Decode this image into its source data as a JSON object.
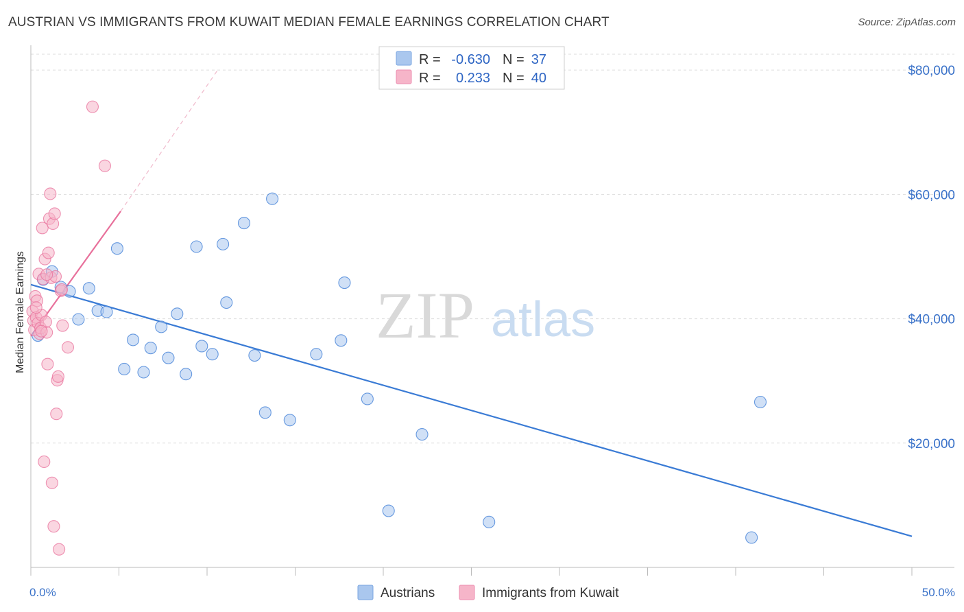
{
  "header": {
    "title": "AUSTRIAN VS IMMIGRANTS FROM KUWAIT MEDIAN FEMALE EARNINGS CORRELATION CHART",
    "source": "Source: ZipAtlas.com"
  },
  "watermark": {
    "zip": "ZIP",
    "atlas": "atlas"
  },
  "stats": [
    {
      "r_label": "R =",
      "r": "-0.630",
      "n_label": "N =",
      "n": "37",
      "color": "#aac7ee"
    },
    {
      "r_label": "R =",
      "r": "0.233",
      "n_label": "N =",
      "n": "40",
      "color": "#f6b5c9"
    }
  ],
  "legend": [
    {
      "label": "Austrians",
      "color": "#aac7ee"
    },
    {
      "label": "Immigrants from Kuwait",
      "color": "#f6b5c9"
    }
  ],
  "chart_data": {
    "type": "scatter",
    "ylabel": "Median Female Earnings",
    "xlim": [
      0,
      50
    ],
    "ylim": [
      0,
      83000
    ],
    "x_tick_labels": [
      "0.0%",
      "50.0%"
    ],
    "y_ticks": [
      {
        "value": 20000,
        "label": "$20,000"
      },
      {
        "value": 40000,
        "label": "$40,000"
      },
      {
        "value": 60000,
        "label": "$60,000"
      },
      {
        "value": 80000,
        "label": "$80,000"
      }
    ],
    "grid": true,
    "colors": {
      "austrians": "#3a7bd5",
      "kuwait": "#e8709b",
      "grid": "#dddddd",
      "tick_label": "#3a72c9"
    },
    "series": [
      {
        "name": "Austrians",
        "color": "#3a7bd5",
        "fill": "#aac7ee",
        "points": [
          [
            0.4,
            37300
          ],
          [
            0.7,
            46300
          ],
          [
            1.2,
            47600
          ],
          [
            1.7,
            45100
          ],
          [
            2.2,
            44400
          ],
          [
            2.7,
            39900
          ],
          [
            3.3,
            44900
          ],
          [
            3.8,
            41300
          ],
          [
            4.3,
            41100
          ],
          [
            4.9,
            51300
          ],
          [
            5.3,
            31900
          ],
          [
            5.8,
            36600
          ],
          [
            6.4,
            31400
          ],
          [
            6.8,
            35300
          ],
          [
            7.4,
            38700
          ],
          [
            7.8,
            33700
          ],
          [
            8.3,
            40800
          ],
          [
            8.8,
            31100
          ],
          [
            9.4,
            51600
          ],
          [
            9.7,
            35600
          ],
          [
            10.3,
            34300
          ],
          [
            10.9,
            52000
          ],
          [
            11.1,
            42600
          ],
          [
            12.1,
            55400
          ],
          [
            12.7,
            34100
          ],
          [
            13.3,
            24900
          ],
          [
            13.7,
            59300
          ],
          [
            14.7,
            23700
          ],
          [
            16.2,
            34300
          ],
          [
            17.6,
            36500
          ],
          [
            17.8,
            45800
          ],
          [
            19.1,
            27100
          ],
          [
            20.3,
            9100
          ],
          [
            22.2,
            21400
          ],
          [
            26.0,
            7300
          ],
          [
            40.9,
            4800
          ],
          [
            41.4,
            26600
          ]
        ]
      },
      {
        "name": "Immigrants from Kuwait",
        "color": "#e8709b",
        "fill": "#f6b5c9",
        "points": [
          [
            0.1,
            41200
          ],
          [
            0.15,
            39700
          ],
          [
            0.2,
            38200
          ],
          [
            0.25,
            43600
          ],
          [
            0.3,
            40200
          ],
          [
            0.35,
            42900
          ],
          [
            0.4,
            39300
          ],
          [
            0.45,
            47200
          ],
          [
            0.5,
            37600
          ],
          [
            0.55,
            38500
          ],
          [
            0.6,
            40600
          ],
          [
            0.65,
            54600
          ],
          [
            0.7,
            46400
          ],
          [
            0.75,
            17000
          ],
          [
            0.8,
            49600
          ],
          [
            0.85,
            39500
          ],
          [
            0.9,
            37800
          ],
          [
            0.95,
            32700
          ],
          [
            1.0,
            50600
          ],
          [
            1.05,
            56100
          ],
          [
            1.1,
            60100
          ],
          [
            1.15,
            46600
          ],
          [
            1.2,
            13600
          ],
          [
            1.25,
            55300
          ],
          [
            1.3,
            6600
          ],
          [
            1.35,
            56900
          ],
          [
            1.4,
            46800
          ],
          [
            1.45,
            24700
          ],
          [
            1.5,
            30100
          ],
          [
            1.55,
            30700
          ],
          [
            1.6,
            2900
          ],
          [
            1.7,
            44500
          ],
          [
            1.75,
            44700
          ],
          [
            1.8,
            38900
          ],
          [
            2.1,
            35400
          ],
          [
            3.5,
            74100
          ],
          [
            4.2,
            64600
          ],
          [
            0.6,
            38000
          ],
          [
            0.9,
            47100
          ],
          [
            0.3,
            41800
          ]
        ]
      }
    ],
    "trend_lines": [
      {
        "series": "Austrians",
        "x": [
          0,
          50
        ],
        "y": [
          45500,
          5000
        ]
      },
      {
        "series": "Immigrants from Kuwait",
        "x": [
          0,
          5.1
        ],
        "y": [
          37200,
          57300
        ],
        "dashed_x": [
          5.1,
          10.6
        ],
        "dashed_y": [
          57300,
          80000
        ]
      }
    ]
  }
}
